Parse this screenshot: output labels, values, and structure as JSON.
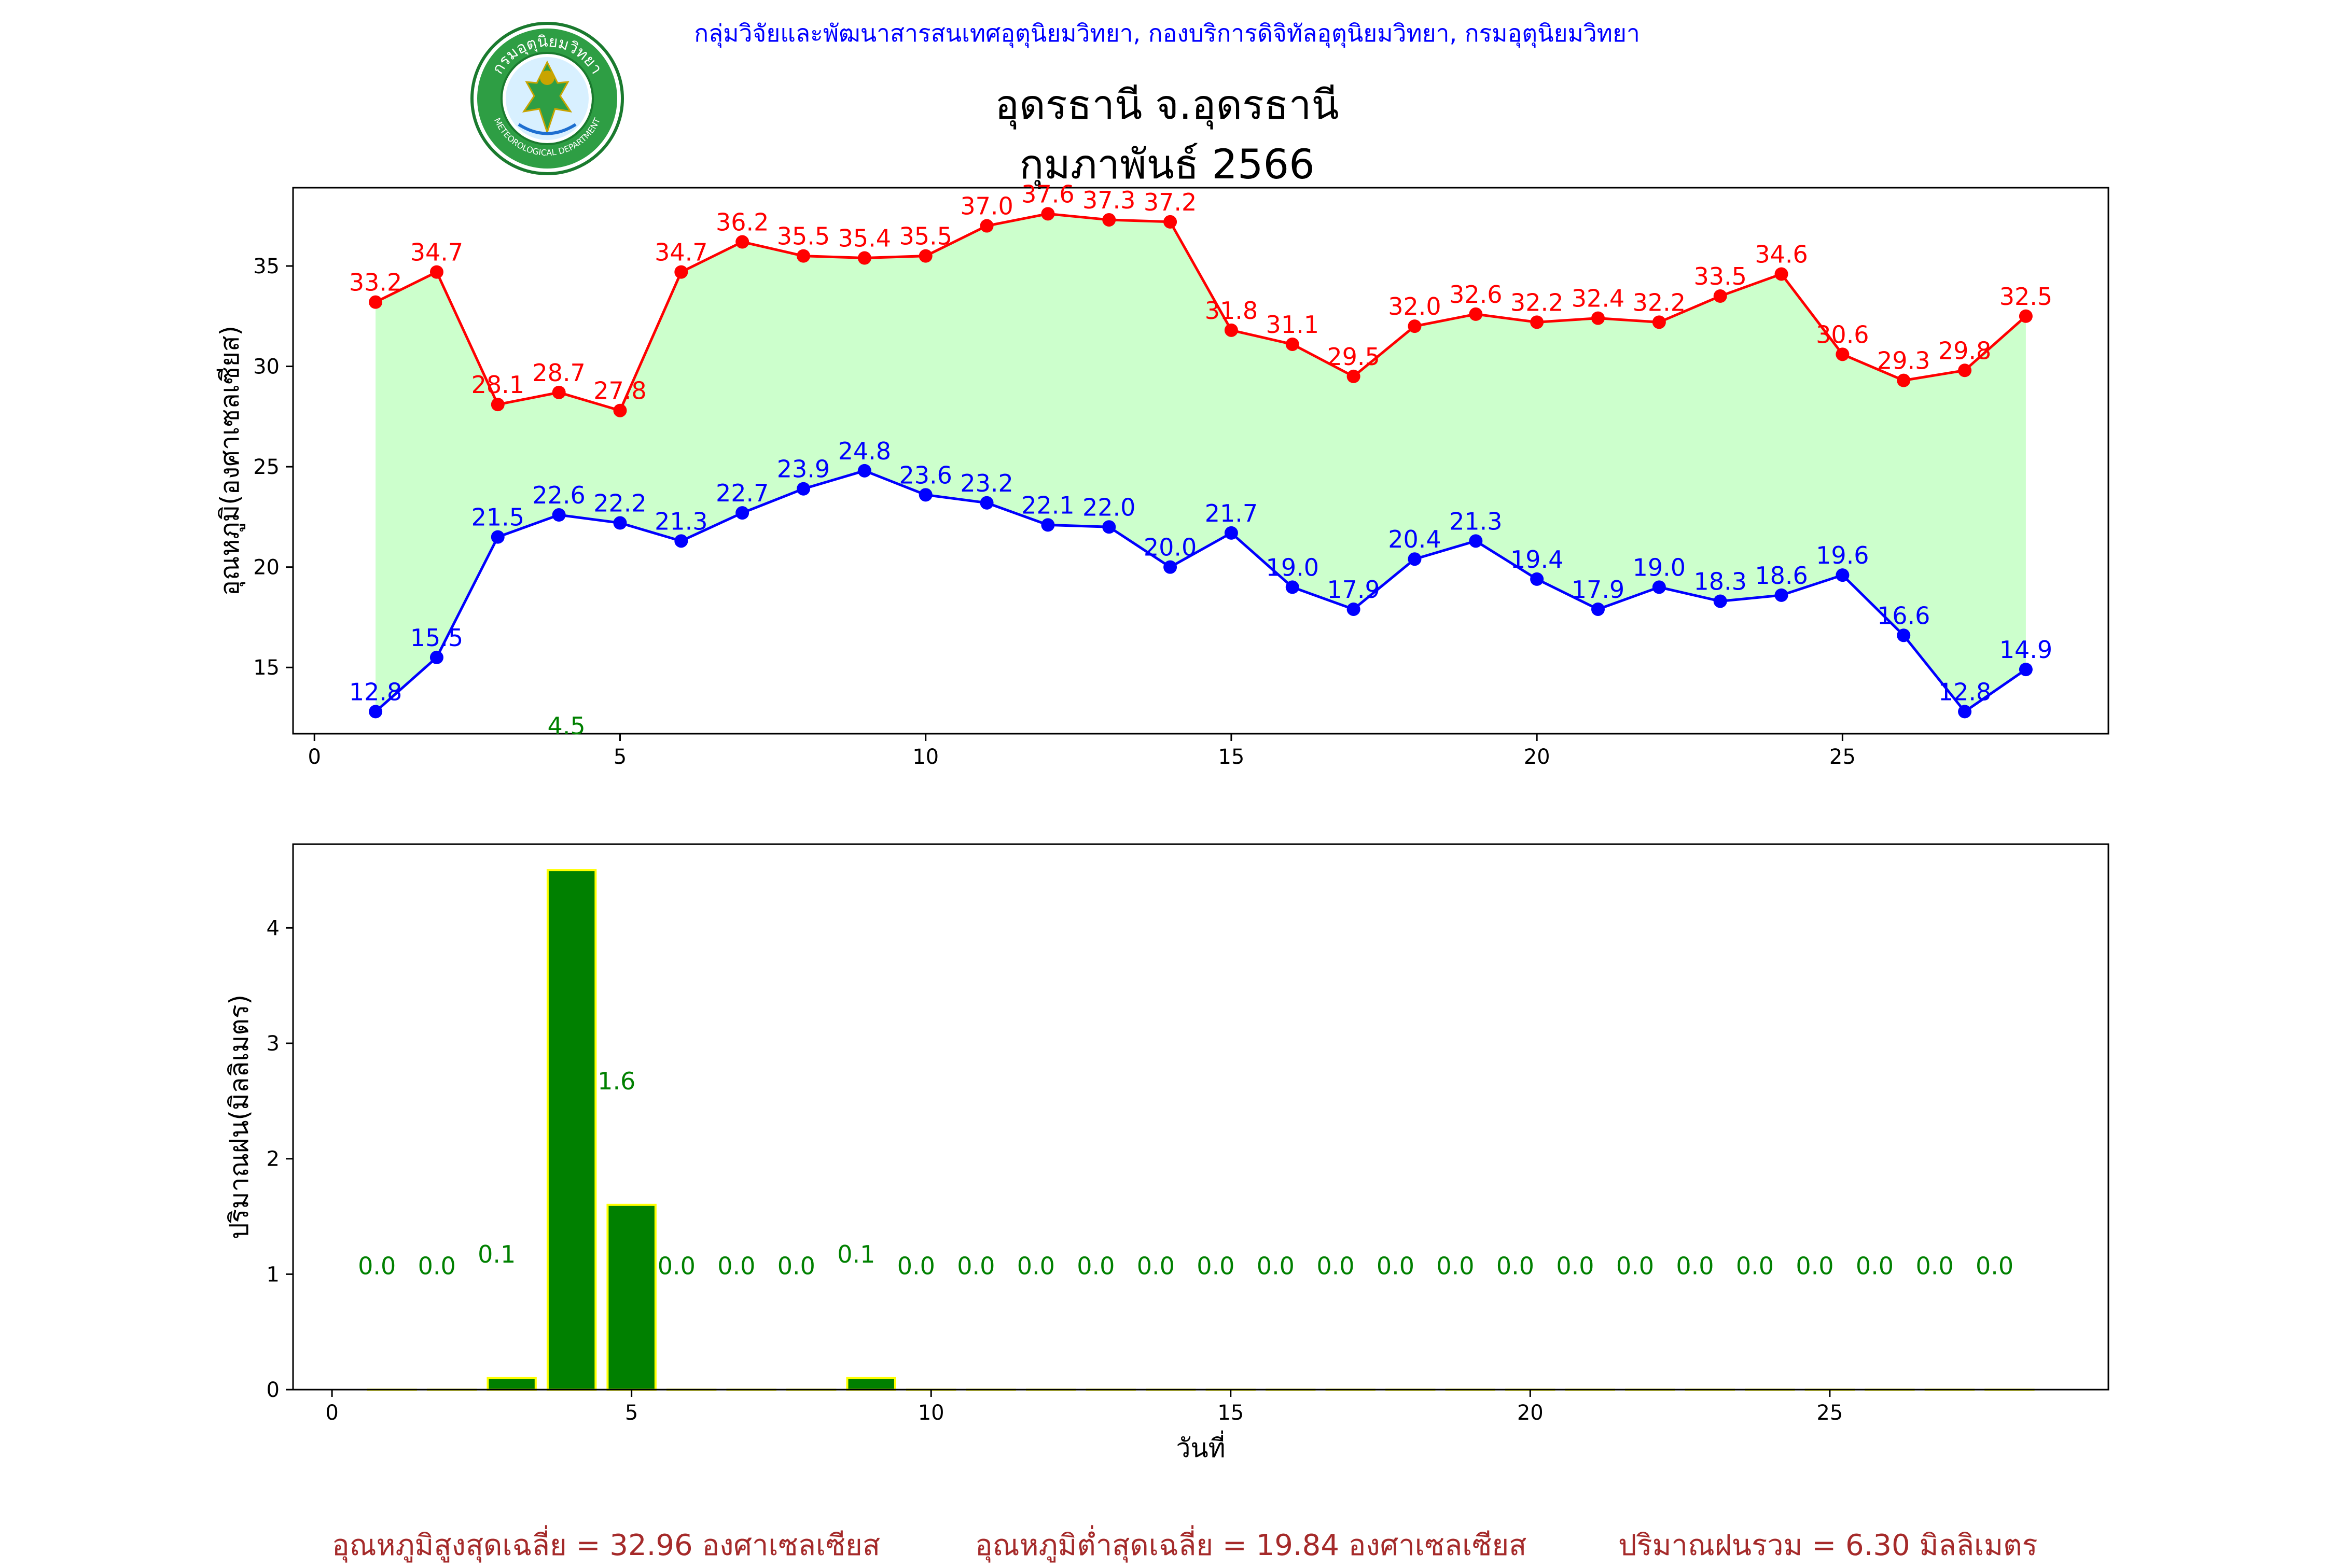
{
  "header": {
    "org_line": "กลุ่มวิจัยและพัฒนาสารสนเทศอุตุนิยมวิทยา, กองบริการดิจิทัลอุตุนิยมวิทยา, กรมอุตุนิยมวิทยา",
    "station": "อุดรธานี จ.อุดรธานี",
    "period": "กุมภาพันธ์ 2566"
  },
  "logo": {
    "ring_text": "กรมอุตุนิยมวิทยา",
    "bottom_text": "METEOROLOGICAL DEPARTMENT"
  },
  "chart_data": [
    {
      "type": "line",
      "ylabel": "อุณหภูมิ(องศาเซลเซียส)",
      "xlabel": "",
      "xlim": [
        -0.35,
        29.35
      ],
      "ylim": [
        11.7,
        38.9
      ],
      "xticks": [
        0,
        5,
        10,
        15,
        20,
        25
      ],
      "yticks": [
        15,
        20,
        25,
        30,
        35
      ],
      "fill_between": {
        "color": "#ccffcc"
      },
      "x": [
        1,
        2,
        3,
        4,
        5,
        6,
        7,
        8,
        9,
        10,
        11,
        12,
        13,
        14,
        15,
        16,
        17,
        18,
        19,
        20,
        21,
        22,
        23,
        24,
        25,
        26,
        27,
        28
      ],
      "series": [
        {
          "color": "#ff0000",
          "values": [
            33.2,
            34.7,
            28.1,
            28.7,
            27.8,
            34.7,
            36.2,
            35.5,
            35.4,
            35.5,
            37.0,
            37.6,
            37.3,
            37.2,
            31.8,
            31.1,
            29.5,
            32.0,
            32.6,
            32.2,
            32.4,
            32.2,
            33.5,
            34.6,
            30.6,
            29.3,
            29.8,
            32.5
          ]
        },
        {
          "color": "#0000ff",
          "values": [
            12.8,
            15.5,
            21.5,
            22.6,
            22.2,
            21.3,
            22.7,
            23.9,
            24.8,
            23.6,
            23.2,
            22.1,
            22.0,
            20.0,
            21.7,
            19.0,
            17.9,
            20.4,
            21.3,
            19.4,
            17.9,
            19.0,
            18.3,
            18.6,
            19.6,
            16.6,
            12.8,
            14.9
          ]
        }
      ]
    },
    {
      "type": "bar",
      "ylabel": "ปริมาณฝน(มิลลิเมตร)",
      "xlabel": "วันที่",
      "xlim": [
        -0.65,
        29.65
      ],
      "ylim": [
        0,
        4.725
      ],
      "xticks": [
        0,
        5,
        10,
        15,
        20,
        25
      ],
      "yticks": [
        0,
        1,
        2,
        3,
        4
      ],
      "bar_color": "#008000",
      "bar_edge": "#ffff00",
      "x": [
        1,
        2,
        3,
        4,
        5,
        6,
        7,
        8,
        9,
        10,
        11,
        12,
        13,
        14,
        15,
        16,
        17,
        18,
        19,
        20,
        21,
        22,
        23,
        24,
        25,
        26,
        27,
        28
      ],
      "values": [
        0.0,
        0.0,
        0.1,
        4.5,
        1.6,
        0.0,
        0.0,
        0.0,
        0.1,
        0.0,
        0.0,
        0.0,
        0.0,
        0.0,
        0.0,
        0.0,
        0.0,
        0.0,
        0.0,
        0.0,
        0.0,
        0.0,
        0.0,
        0.0,
        0.0,
        0.0,
        0.0,
        0.0
      ]
    }
  ],
  "footer": {
    "avg_max": "อุณหภูมิสูงสุดเฉลี่ย = 32.96 องศาเซลเซียส",
    "avg_min": "อุณหภูมิต่ำสุดเฉลี่ย = 19.84 องศาเซลเซียส",
    "total_rain": "ปริมาณฝนรวม = 6.30 มิลลิเมตร"
  },
  "colors": {
    "max_line": "#ff0000",
    "min_line": "#0000ff",
    "range_fill": "#ccffcc",
    "rain_bar": "#008000",
    "footer_text": "#a52a2a",
    "header_text": "#0000ff"
  }
}
